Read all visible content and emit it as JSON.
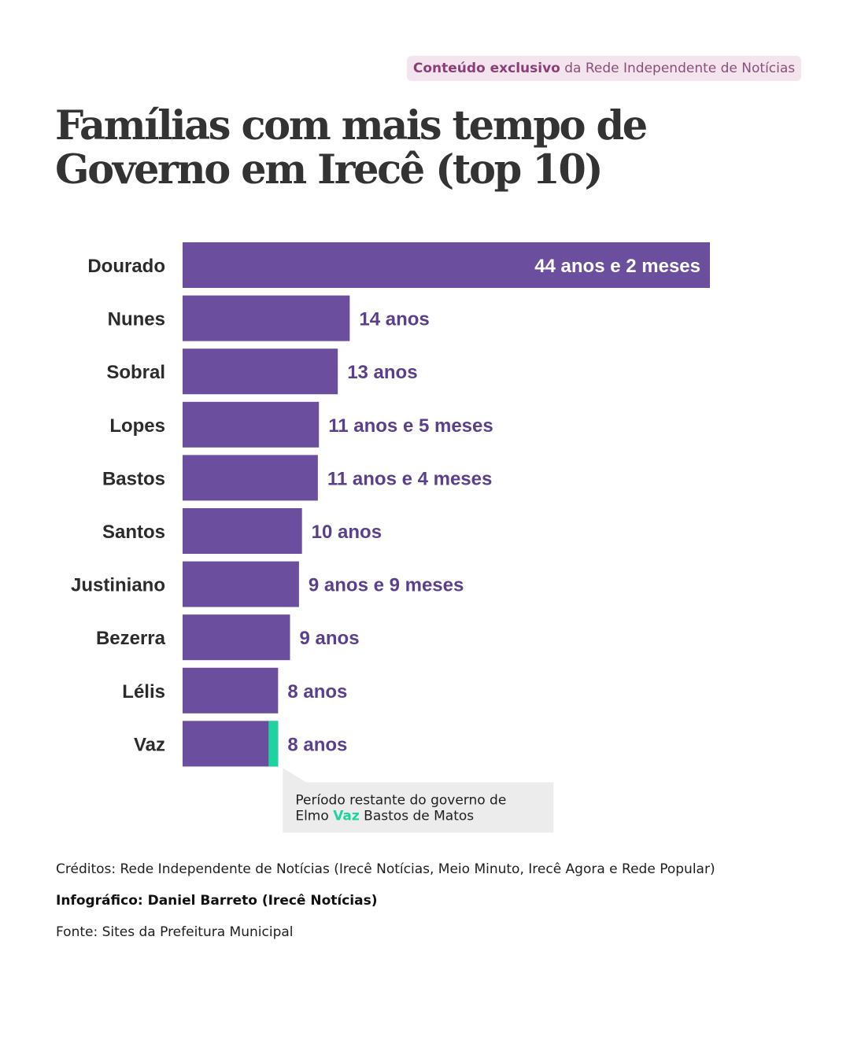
{
  "header": {
    "badge_bold": "Conteúdo exclusivo",
    "badge_rest": "da Rede Independente de Notícias"
  },
  "chart_data": {
    "type": "bar",
    "orientation": "horizontal",
    "title": "Famílias com mais tempo de Governo em Irecê (top 10)",
    "categories": [
      "Dourado",
      "Nunes",
      "Sobral",
      "Lopes",
      "Bastos",
      "Santos",
      "Justiniano",
      "Bezerra",
      "Lélis",
      "Vaz"
    ],
    "values": [
      44.17,
      14,
      13,
      11.42,
      11.33,
      10,
      9.75,
      9,
      8,
      8
    ],
    "value_labels": [
      "44 anos e 2 meses",
      "14 anos",
      "13 anos",
      "11 anos e 5 meses",
      "11 anos e 4 meses",
      "10 anos",
      "9 anos e 9 meses",
      "9 anos",
      "8 anos",
      "8 anos"
    ],
    "unit": "anos",
    "highlight": {
      "category": "Vaz",
      "remaining_years": 0.8,
      "color": "#1fd3a0",
      "note_before": "Período restante do governo de",
      "note_line2_before": "Elmo",
      "note_highlight": "Vaz",
      "note_line2_after": "Bastos de Matos"
    },
    "colors": {
      "bar": "#6b4e9e",
      "label": "#5a3f8f",
      "category_label": "#2b2b2b",
      "inner_label": "#ffffff"
    },
    "xlim": [
      0,
      44.17
    ],
    "grid": false,
    "legend": "none"
  },
  "credits": {
    "line1": "Créditos: Rede Independente de Notícias (Irecê Notícias, Meio Minuto, Irecê Agora e Rede Popular)",
    "line2": "Infográfico: Daniel Barreto (Irecê Notícias)",
    "line3": "Fonte: Sites da Prefeitura Municipal"
  }
}
